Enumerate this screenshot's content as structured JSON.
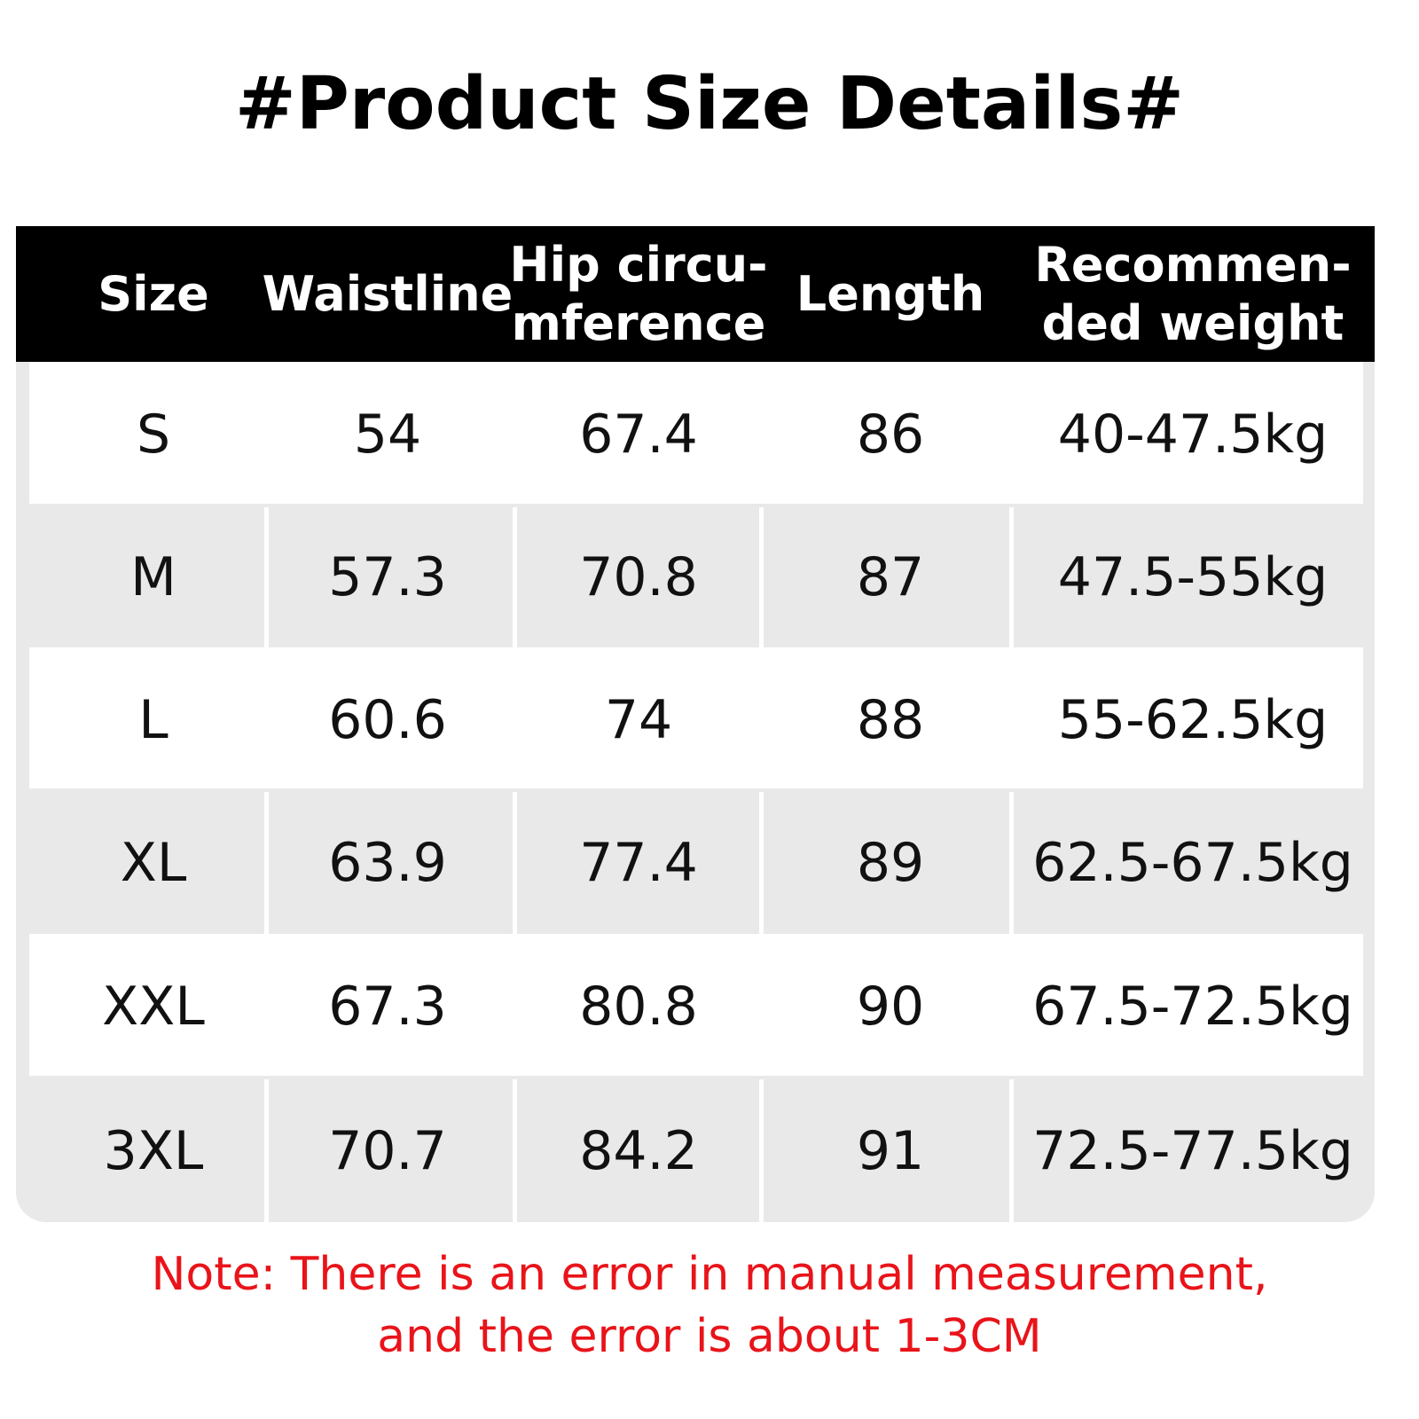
{
  "title": "#Product Size Details#",
  "table": {
    "header": [
      [
        "Size"
      ],
      [
        "Waistline"
      ],
      [
        "Hip circu-",
        "mference"
      ],
      [
        "Length"
      ],
      [
        "Recommen-",
        "ded weight"
      ]
    ],
    "rows": [
      [
        "S",
        "54",
        "67.4",
        "86",
        "40-47.5kg"
      ],
      [
        "M",
        "57.3",
        "70.8",
        "87",
        "47.5-55kg"
      ],
      [
        "L",
        "60.6",
        "74",
        "88",
        "55-62.5kg"
      ],
      [
        "XL",
        "63.9",
        "77.4",
        "89",
        "62.5-67.5kg"
      ],
      [
        "XXL",
        "67.3",
        "80.8",
        "90",
        "67.5-72.5kg"
      ],
      [
        "3XL",
        "70.7",
        "84.2",
        "91",
        "72.5-77.5kg"
      ]
    ]
  },
  "note": [
    "Note: There is an error in manual measurement,",
    "and the error is about 1-3CM"
  ]
}
